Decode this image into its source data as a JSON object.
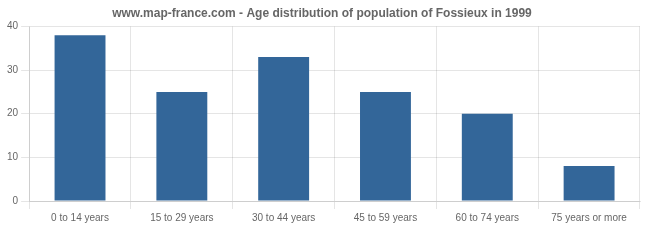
{
  "chart_data": {
    "type": "bar",
    "title": "www.map-france.com - Age distribution of population of Fossieux in 1999",
    "categories": [
      "0 to 14 years",
      "15 to 29 years",
      "30 to 44 years",
      "45 to 59 years",
      "60 to 74 years",
      "75 years or more"
    ],
    "values": [
      38,
      25,
      33,
      25,
      20,
      8
    ],
    "color": "#336699",
    "ylim": [
      0,
      40
    ],
    "yticks": [
      0,
      10,
      20,
      30,
      40
    ],
    "grid": true
  }
}
